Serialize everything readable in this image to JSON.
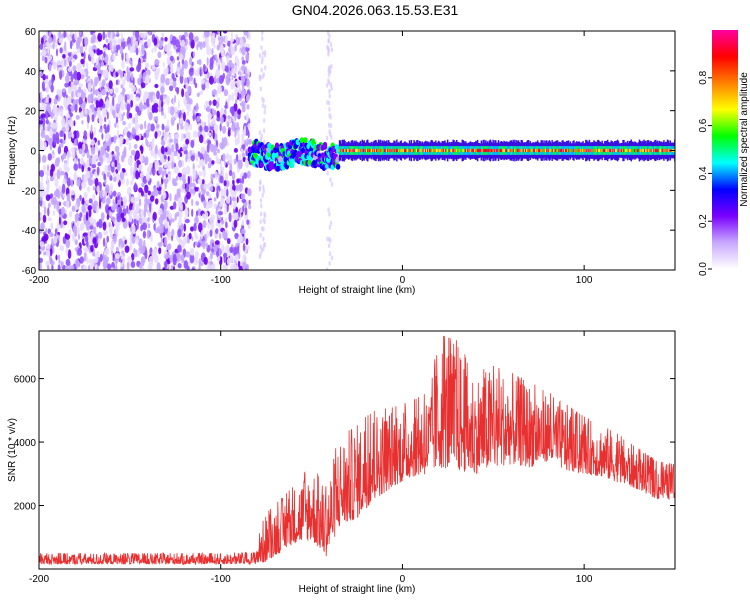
{
  "title": "GN04.2026.063.15.53.E31",
  "chart_data": [
    {
      "type": "heatmap",
      "title": "GN04.2026.063.15.53.E31",
      "xlabel": "Height of straight line (km)",
      "ylabel": "Frequency (Hz)",
      "xlim": [
        -200,
        150
      ],
      "ylim": [
        -60,
        60
      ],
      "xticks": [
        -200,
        -100,
        0,
        100
      ],
      "yticks": [
        -60,
        -40,
        -20,
        0,
        20,
        40,
        60
      ],
      "colorbar": {
        "label": "Normalized spectral amplitude",
        "range": [
          0,
          1
        ],
        "ticks": [
          0.0,
          0.2,
          0.4,
          0.6,
          0.8
        ],
        "colormap": [
          "#ffffff",
          "#c8a8ff",
          "#7a00ff",
          "#0000ff",
          "#00ffff",
          "#00ff00",
          "#ffff00",
          "#ff8000",
          "#ff0000",
          "#ff00a0"
        ]
      },
      "regions": [
        {
          "x": [
            -200,
            -84
          ],
          "freq": [
            -60,
            60
          ],
          "amplitude": [
            0.05,
            0.2
          ],
          "pattern": "broadband noise"
        },
        {
          "x": [
            -84,
            -35
          ],
          "freq": [
            -8,
            8
          ],
          "amplitude": [
            0.2,
            0.5
          ],
          "pattern": "wandering carrier"
        },
        {
          "x": [
            -35,
            150
          ],
          "freq": [
            -2,
            2
          ],
          "amplitude": [
            0.5,
            1.0
          ],
          "pattern": "narrow carrier near 0 Hz"
        }
      ]
    },
    {
      "type": "line",
      "xlabel": "Height of straight line (km)",
      "ylabel": "SNR (10 * v/v)",
      "xlim": [
        -200,
        150
      ],
      "ylim": [
        0,
        7500
      ],
      "xticks": [
        -200,
        -100,
        0,
        100
      ],
      "yticks": [
        2000,
        4000,
        6000
      ],
      "color": "#e83030",
      "envelope": {
        "x": [
          -200,
          -150,
          -100,
          -82,
          -76,
          -60,
          -50,
          -42,
          -35,
          -25,
          -15,
          -5,
          5,
          15,
          20,
          30,
          40,
          50,
          60,
          70,
          80,
          90,
          100,
          110,
          120,
          130,
          140,
          150
        ],
        "low": [
          150,
          150,
          150,
          150,
          200,
          800,
          900,
          400,
          1300,
          1600,
          2200,
          2600,
          2900,
          3000,
          3200,
          3100,
          3000,
          3200,
          3300,
          3200,
          3400,
          3100,
          3000,
          2900,
          2700,
          2500,
          2200,
          2200
        ],
        "high": [
          500,
          500,
          500,
          550,
          1700,
          2600,
          3300,
          2600,
          4200,
          4600,
          5000,
          5100,
          5300,
          5600,
          7400,
          7200,
          6200,
          6400,
          6200,
          5900,
          5600,
          5200,
          4800,
          4600,
          4200,
          3800,
          3400,
          3300
        ]
      }
    }
  ]
}
